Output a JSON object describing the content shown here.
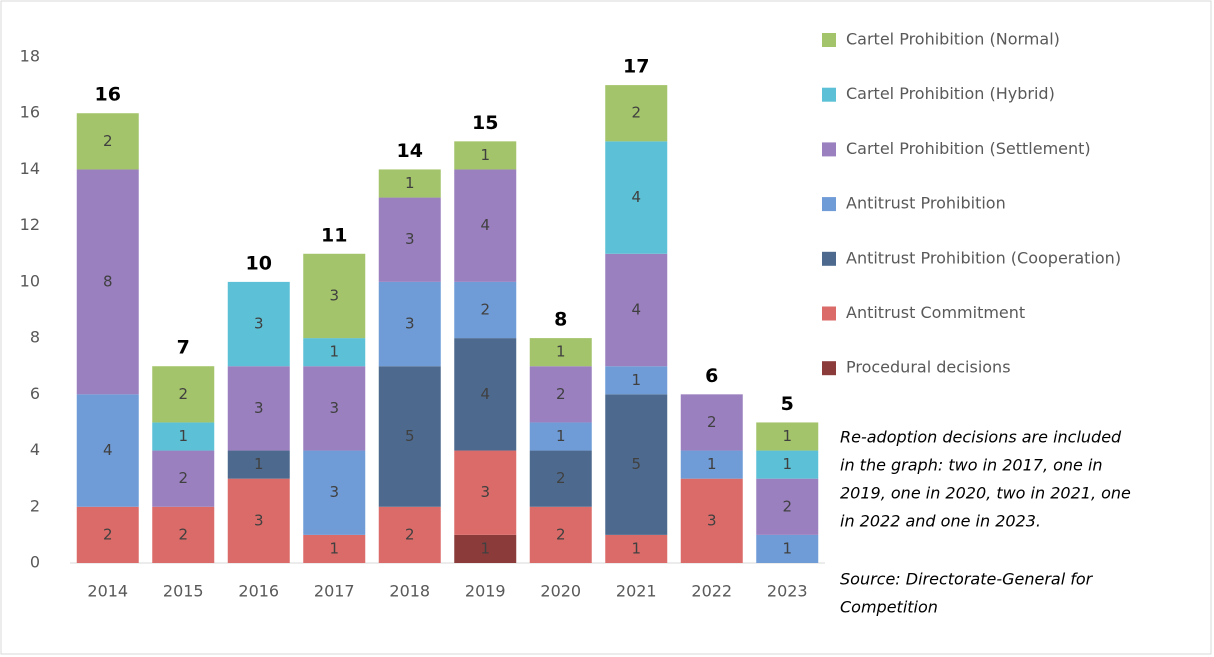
{
  "chart_data": {
    "type": "stacked_bar",
    "categories": [
      "2014",
      "2015",
      "2016",
      "2017",
      "2018",
      "2019",
      "2020",
      "2021",
      "2022",
      "2023"
    ],
    "series": [
      {
        "name": "Procedural decisions",
        "color": "#8c3b3b",
        "values": [
          null,
          null,
          null,
          null,
          null,
          1,
          null,
          null,
          null,
          null
        ]
      },
      {
        "name": "Antitrust Commitment",
        "color": "#da6b68",
        "values": [
          2,
          2,
          3,
          1,
          2,
          3,
          2,
          1,
          3,
          null
        ]
      },
      {
        "name": "Antitrust Prohibition (Cooperation)",
        "color": "#4d6a8e",
        "values": [
          null,
          null,
          1,
          null,
          5,
          4,
          2,
          5,
          null,
          null
        ]
      },
      {
        "name": "Antitrust Prohibition",
        "color": "#6f9bd6",
        "values": [
          4,
          null,
          null,
          3,
          3,
          2,
          1,
          1,
          1,
          1
        ]
      },
      {
        "name": "Cartel Prohibition (Settlement)",
        "color": "#9a80bf",
        "values": [
          8,
          2,
          3,
          3,
          3,
          4,
          2,
          4,
          2,
          2
        ]
      },
      {
        "name": "Cartel Prohibition (Hybrid)",
        "color": "#5cc1d6",
        "values": [
          null,
          1,
          3,
          1,
          null,
          null,
          null,
          4,
          null,
          1
        ]
      },
      {
        "name": "Cartel Prohibition (Normal)",
        "color": "#a3c46a",
        "values": [
          2,
          2,
          null,
          3,
          1,
          1,
          1,
          2,
          null,
          1
        ]
      }
    ],
    "totals": [
      16,
      7,
      10,
      11,
      14,
      15,
      8,
      17,
      6,
      5
    ],
    "ylim": [
      0,
      18
    ],
    "yticks": [
      0,
      2,
      4,
      6,
      8,
      10,
      12,
      14,
      16,
      18
    ],
    "note": [
      "Re-adoption decisions are included",
      "in the graph: two in 2017, one in",
      "2019, one in 2020, two in 2021, one",
      "in 2022 and one in 2023."
    ],
    "source": [
      "Source:  Directorate-General for",
      "Competition"
    ]
  }
}
